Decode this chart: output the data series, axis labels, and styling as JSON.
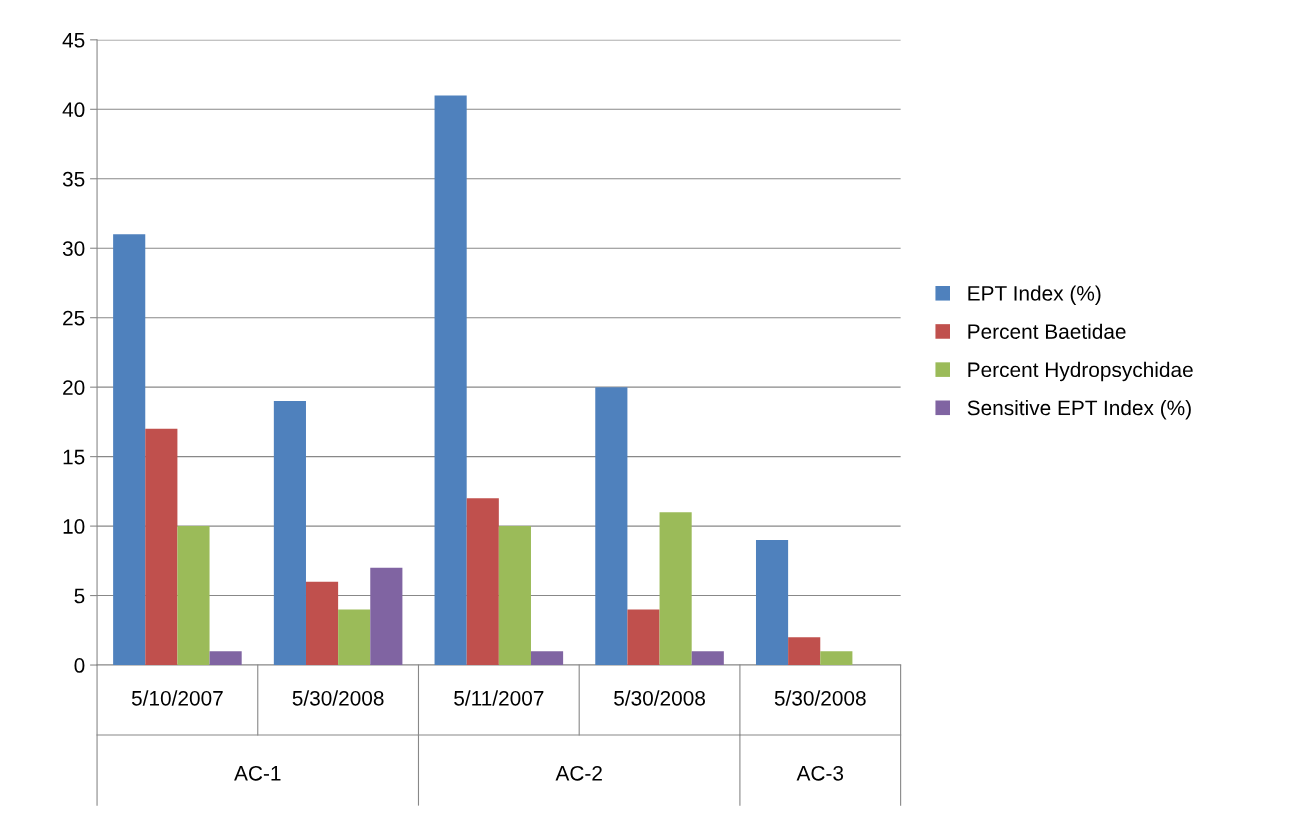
{
  "chart_data": {
    "type": "bar",
    "categories": [
      "5/10/2007",
      "5/30/2008",
      "5/11/2007",
      "5/30/2008",
      "5/30/2008"
    ],
    "series": [
      {
        "name": "EPT Index (%)",
        "color": "#4f81bd",
        "values": [
          31,
          19,
          41,
          20,
          9
        ]
      },
      {
        "name": "Percent Baetidae",
        "color": "#c0504d",
        "values": [
          17,
          6,
          12,
          4,
          2
        ]
      },
      {
        "name": "Percent Hydropsychidae",
        "color": "#9bbb59",
        "values": [
          10,
          4,
          10,
          11,
          1
        ]
      },
      {
        "name": "Sensitive EPT Index (%)",
        "color": "#8064a2",
        "values": [
          1,
          7,
          1,
          1,
          null
        ]
      }
    ],
    "annotations": [
      "AC-1",
      "AC-2",
      "AC-3"
    ],
    "ylim": [
      0,
      45
    ],
    "yticks": [
      0,
      5,
      10,
      15,
      20,
      25,
      30,
      35,
      40,
      45
    ],
    "grid": "y",
    "legend": "right"
  }
}
